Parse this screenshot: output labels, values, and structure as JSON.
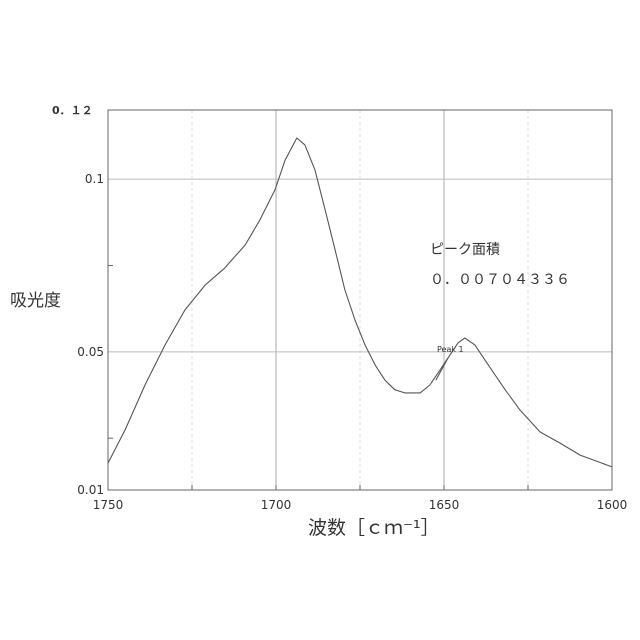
{
  "chart_data": {
    "type": "line",
    "title": "",
    "xlabel": "波数［ｃｍ⁻¹］",
    "ylabel": "吸光度",
    "xlim": [
      1750,
      1600
    ],
    "ylim": [
      0.01,
      0.12
    ],
    "x_reversed": true,
    "grid": true,
    "xticks": [
      "1750",
      "1700",
      "1650",
      "1600"
    ],
    "yticks": [
      {
        "value": 0.12,
        "label": "0．１２"
      },
      {
        "value": 0.1,
        "label": "0.1"
      },
      {
        "value": 0.05,
        "label": "0.05"
      },
      {
        "value": 0.01,
        "label": "0.01"
      }
    ],
    "series": [
      {
        "x": [
          1750,
          1744.9,
          1739.0,
          1733.0,
          1727.1,
          1721.1,
          1715.2,
          1713.7,
          1709.2,
          1704.8,
          1700.3,
          1697.3,
          1693.8,
          1691.4,
          1688.4,
          1685.4,
          1682.4,
          1679.5,
          1676.5,
          1673.5,
          1670.5,
          1667.6,
          1664.6,
          1661.6,
          1657.1,
          1654.2,
          1651.2,
          1648.2,
          1645.8,
          1643.8,
          1640.8,
          1637.8,
          1634.8,
          1631.8,
          1627.4,
          1621.4,
          1615.5,
          1609.5,
          1600
        ],
        "y": [
          0.0178,
          0.0274,
          0.0404,
          0.052,
          0.0621,
          0.0693,
          0.0743,
          0.076,
          0.0809,
          0.0882,
          0.0969,
          0.1055,
          0.1119,
          0.1099,
          0.1026,
          0.0911,
          0.0795,
          0.0679,
          0.0592,
          0.052,
          0.0462,
          0.0418,
          0.039,
          0.0381,
          0.0381,
          0.0404,
          0.0447,
          0.0491,
          0.0526,
          0.054,
          0.052,
          0.0476,
          0.0433,
          0.039,
          0.0332,
          0.0268,
          0.0236,
          0.0201,
          0.0167
        ],
        "color": "#555555"
      },
      {
        "x": [
          1652.4,
          1648.8
        ],
        "y": [
          0.0418,
          0.0482
        ],
        "color": "#555555"
      }
    ],
    "annotations": [
      {
        "text": "Peak 1",
        "x": 1650,
        "y": 0.052
      },
      {
        "text": "ピーク面積"
      },
      {
        "text": "０．００７０４３３６"
      }
    ]
  }
}
